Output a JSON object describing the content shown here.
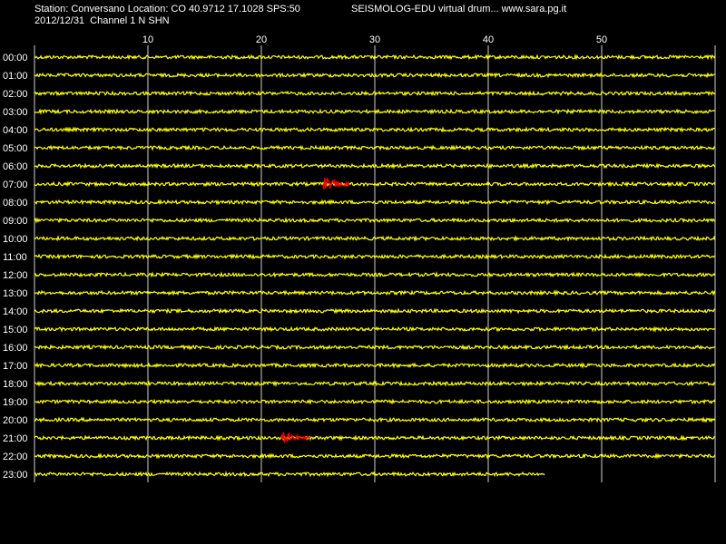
{
  "header": {
    "station_line": "Station: Conversano Location: CO 40.9712 17.1028 SPS:50",
    "date_line": "2012/12/31  Channel 1 N SHN",
    "app_title": "SEISMOLOG-EDU virtual drum... www.sara.pg.it"
  },
  "chart_data": {
    "type": "line",
    "title": "",
    "xlabel": "",
    "ylabel": "",
    "x_ticks": [
      10,
      20,
      30,
      40,
      50
    ],
    "xlim": [
      0,
      60
    ],
    "grid": "vertical",
    "rows": [
      "00:00",
      "01:00",
      "02:00",
      "03:00",
      "04:00",
      "05:00",
      "06:00",
      "07:00",
      "08:00",
      "09:00",
      "10:00",
      "11:00",
      "12:00",
      "13:00",
      "14:00",
      "15:00",
      "16:00",
      "17:00",
      "18:00",
      "19:00",
      "20:00",
      "21:00",
      "22:00",
      "23:00"
    ],
    "last_row_end_minute": 45,
    "trace_color": "#ffff00",
    "event_color": "#ff0000",
    "events": [
      {
        "row": "07:00",
        "start_minute": 25.5,
        "end_minute": 27.8
      },
      {
        "row": "21:00",
        "start_minute": 21.8,
        "end_minute": 24.3
      }
    ]
  }
}
